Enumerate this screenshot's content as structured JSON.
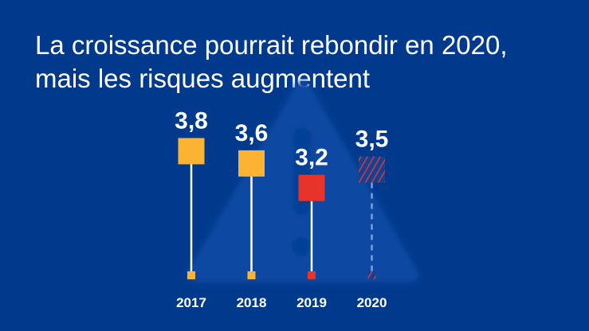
{
  "title": {
    "line1": "La croissance pourrait rebondir en 2020,",
    "line2": "mais les risques augmentent"
  },
  "chart_data": {
    "type": "lollipop",
    "title": "La croissance pourrait rebondir en 2020, mais les risques augmentent",
    "categories": [
      "2017",
      "2018",
      "2019",
      "2020"
    ],
    "values": [
      3.8,
      3.6,
      3.2,
      3.5
    ],
    "labels": [
      "3,8",
      "3,6",
      "3,2",
      "3,5"
    ],
    "styles": [
      "solid",
      "solid",
      "solid",
      "projected"
    ],
    "colors": [
      "#fbb331",
      "#fbb331",
      "#e8332a",
      "#c0424a"
    ],
    "background": "#013a8d"
  }
}
